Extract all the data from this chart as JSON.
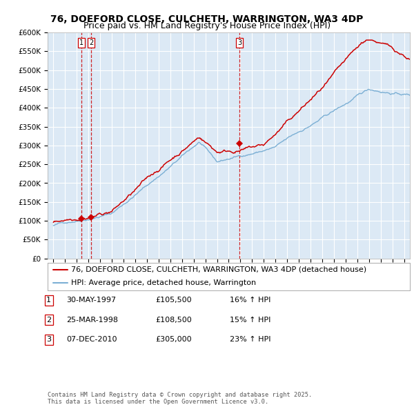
{
  "title": "76, DOEFORD CLOSE, CULCHETH, WARRINGTON, WA3 4DP",
  "subtitle": "Price paid vs. HM Land Registry's House Price Index (HPI)",
  "legend_line1": "76, DOEFORD CLOSE, CULCHETH, WARRINGTON, WA3 4DP (detached house)",
  "legend_line2": "HPI: Average price, detached house, Warrington",
  "ylabel_ticks": [
    "£0",
    "£50K",
    "£100K",
    "£150K",
    "£200K",
    "£250K",
    "£300K",
    "£350K",
    "£400K",
    "£450K",
    "£500K",
    "£550K",
    "£600K"
  ],
  "ytick_values": [
    0,
    50000,
    100000,
    150000,
    200000,
    250000,
    300000,
    350000,
    400000,
    450000,
    500000,
    550000,
    600000
  ],
  "xmin": 1994.5,
  "xmax": 2025.5,
  "ymin": 0,
  "ymax": 600000,
  "sale_dates": [
    1997.41,
    1998.23,
    2010.92
  ],
  "sale_prices": [
    105500,
    108500,
    305000
  ],
  "sale_labels": [
    "1",
    "2",
    "3"
  ],
  "vline_color": "#cc0000",
  "sale_marker_color": "#cc0000",
  "hpi_line_color": "#7bafd4",
  "price_line_color": "#cc0000",
  "plot_bg_color": "#dce9f5",
  "grid_color": "#ffffff",
  "footer_text": "Contains HM Land Registry data © Crown copyright and database right 2025.\nThis data is licensed under the Open Government Licence v3.0.",
  "title_fontsize": 10,
  "subtitle_fontsize": 9,
  "tick_fontsize": 7.5,
  "legend_fontsize": 8,
  "table_fontsize": 8,
  "table_rows": [
    {
      "num": "1",
      "date": "30-MAY-1997",
      "price": "£105,500",
      "hpi": "16% ↑ HPI"
    },
    {
      "num": "2",
      "date": "25-MAR-1998",
      "price": "£108,500",
      "hpi": "15% ↑ HPI"
    },
    {
      "num": "3",
      "date": "07-DEC-2010",
      "price": "£305,000",
      "hpi": "23% ↑ HPI"
    }
  ]
}
